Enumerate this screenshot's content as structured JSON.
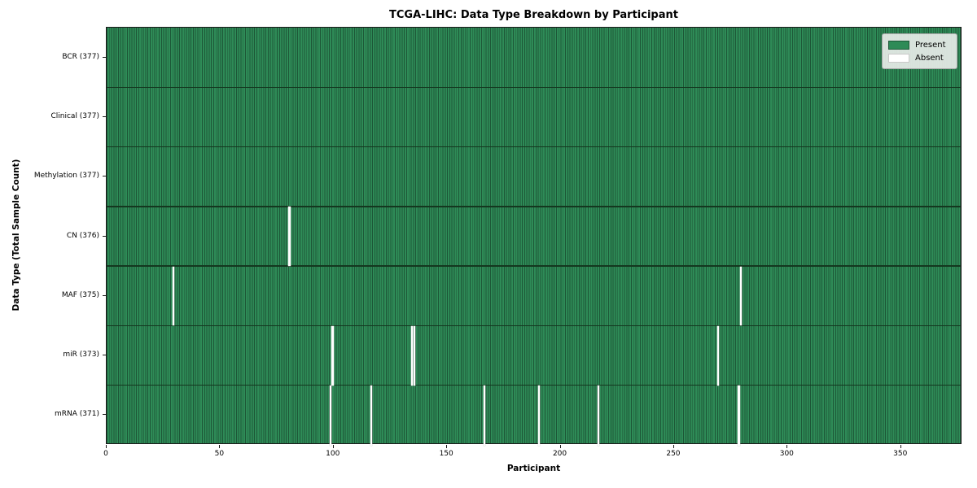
{
  "title": "TCGA-LIHC: Data Type Breakdown by Participant",
  "xlabel": "Participant",
  "ylabel": "Data Type (Total Sample Count)",
  "legend": {
    "present_label": "Present",
    "absent_label": "Absent"
  },
  "colors": {
    "present": "#2e8b57",
    "absent": "#ffffff",
    "cell_edge": "#1d5737",
    "row_divider": "#14371f",
    "spine": "#1a1a1a",
    "legend_background": "#e8ece8",
    "legend_border": "#a9a9a9"
  },
  "chart_data": {
    "type": "heatmap",
    "title": "TCGA-LIHC: Data Type Breakdown by Participant",
    "xlabel": "Participant",
    "ylabel": "Data Type (Total Sample Count)",
    "legend_entries": [
      "Present",
      "Absent"
    ],
    "legend_position": "upper right",
    "n_participants": 377,
    "xlim": [
      0,
      377
    ],
    "x_ticks": [
      0,
      50,
      100,
      150,
      200,
      250,
      300,
      350
    ],
    "rows": [
      {
        "label": "BCR (377)",
        "data_type": "BCR",
        "total": 377,
        "absent_participants": []
      },
      {
        "label": "Clinical (377)",
        "data_type": "Clinical",
        "total": 377,
        "absent_participants": []
      },
      {
        "label": "Methylation (377)",
        "data_type": "Methylation",
        "total": 377,
        "absent_participants": []
      },
      {
        "label": "CN (376)",
        "data_type": "CN",
        "total": 376,
        "absent_participants": [
          80
        ]
      },
      {
        "label": "MAF (375)",
        "data_type": "MAF",
        "total": 375,
        "absent_participants": [
          29,
          279
        ]
      },
      {
        "label": "miR (373)",
        "data_type": "miR",
        "total": 373,
        "absent_participants": [
          99,
          134,
          135,
          269
        ]
      },
      {
        "label": "mRNA (371)",
        "data_type": "mRNA",
        "total": 371,
        "absent_participants": [
          98,
          116,
          166,
          190,
          216,
          278
        ]
      }
    ]
  }
}
